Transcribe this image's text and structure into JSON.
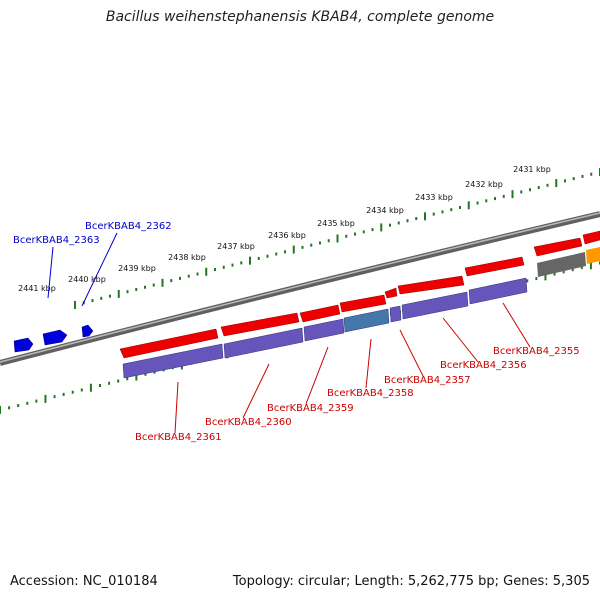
{
  "title": "Bacillus weihenstephanensis KBAB4, complete genome",
  "accession": "Accession: NC_010184",
  "summary": "Topology: circular; Length: 5,262,775 bp; Genes: 5,305",
  "colors": {
    "forward_gene": "#ee0000",
    "reverse_gene": "#0000dd",
    "cds": "#6655bb",
    "cds_highlight": "#4477aa",
    "backbone": "#7a7a7a",
    "ticks": "#227722",
    "label_red": "#cc0000",
    "label_blue": "#0000cc",
    "grey_feature": "#666666",
    "orange_feature": "#ff9900"
  },
  "scale_labels": [
    "2431 kbp",
    "2432 kbp",
    "2433 kbp",
    "2434 kbp",
    "2435 kbp",
    "2436 kbp",
    "2437 kbp",
    "2438 kbp",
    "2439 kbp",
    "2440 kbp",
    "2441 kbp"
  ],
  "gene_labels": [
    {
      "name": "BcerKBAB4_2355",
      "color": "red"
    },
    {
      "name": "BcerKBAB4_2356",
      "color": "red"
    },
    {
      "name": "BcerKBAB4_2357",
      "color": "red"
    },
    {
      "name": "BcerKBAB4_2358",
      "color": "red"
    },
    {
      "name": "BcerKBAB4_2359",
      "color": "red"
    },
    {
      "name": "BcerKBAB4_2360",
      "color": "red"
    },
    {
      "name": "BcerKBAB4_2361",
      "color": "red"
    },
    {
      "name": "BcerKBAB4_2362",
      "color": "blue"
    },
    {
      "name": "BcerKBAB4_2363",
      "color": "blue"
    }
  ]
}
